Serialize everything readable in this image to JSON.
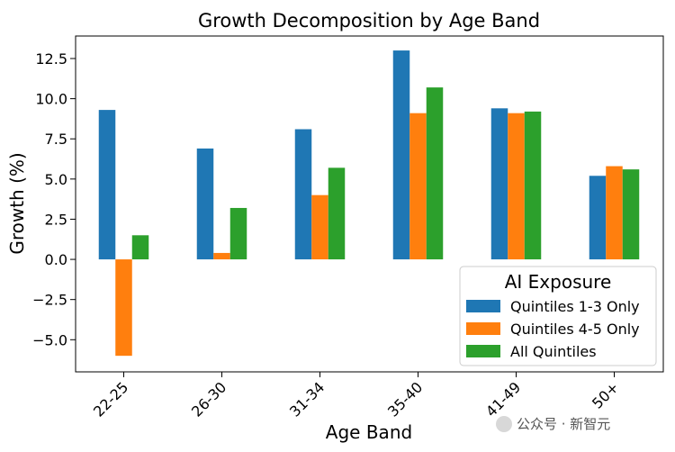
{
  "chart_data": {
    "type": "bar",
    "title": "Growth Decomposition by Age Band",
    "xlabel": "Age Band",
    "ylabel": "Growth (%)",
    "categories": [
      "22-25",
      "26-30",
      "31-34",
      "35-40",
      "41-49",
      "50+"
    ],
    "series": [
      {
        "name": "Quintiles 1-3 Only",
        "color": "#1f77b4",
        "values": [
          9.3,
          6.9,
          8.1,
          13.0,
          9.4,
          5.2
        ]
      },
      {
        "name": "Quintiles 4-5 Only",
        "color": "#ff7f0e",
        "values": [
          -6.0,
          0.4,
          4.0,
          9.1,
          9.1,
          5.8
        ]
      },
      {
        "name": "All Quintiles",
        "color": "#2ca02c",
        "values": [
          1.5,
          3.2,
          5.7,
          10.7,
          9.2,
          5.6
        ]
      }
    ],
    "ylim": [
      -7.0,
      13.9
    ],
    "yticks": [
      -5.0,
      -2.5,
      0.0,
      2.5,
      5.0,
      7.5,
      10.0,
      12.5
    ],
    "ytick_labels": [
      "−5.0",
      "−2.5",
      "0.0",
      "2.5",
      "5.0",
      "7.5",
      "10.0",
      "12.5"
    ],
    "grid": false,
    "legend": {
      "title": "AI Exposure",
      "placement": "lower-right"
    }
  },
  "watermark": {
    "text": "公众号 · 新智元"
  }
}
